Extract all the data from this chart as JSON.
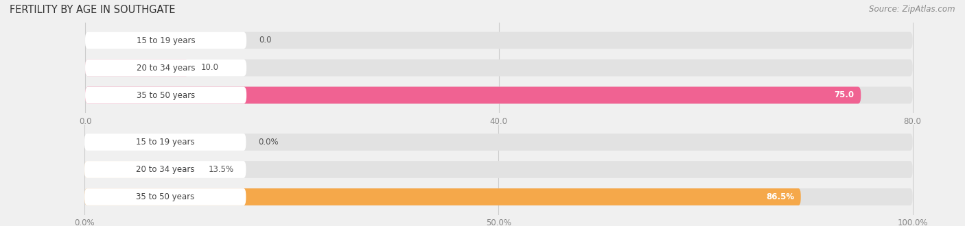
{
  "title": "FERTILITY BY AGE IN SOUTHGATE",
  "source": "Source: ZipAtlas.com",
  "background_color": "#f0f0f0",
  "chart1": {
    "categories": [
      "15 to 19 years",
      "20 to 34 years",
      "35 to 50 years"
    ],
    "values": [
      0.0,
      10.0,
      75.0
    ],
    "max_val": 80.0,
    "xticks": [
      0.0,
      40.0,
      80.0
    ],
    "bar_track_color": "#e2e2e2",
    "bar_colors": [
      "#f2adc0",
      "#f2adc0",
      "#f06292"
    ],
    "value_labels": [
      "0.0",
      "10.0",
      "75.0"
    ],
    "label_inside": [
      false,
      false,
      true
    ]
  },
  "chart2": {
    "categories": [
      "15 to 19 years",
      "20 to 34 years",
      "35 to 50 years"
    ],
    "values": [
      0.0,
      13.5,
      86.5
    ],
    "max_val": 100.0,
    "xticks": [
      0.0,
      50.0,
      100.0
    ],
    "xtick_labels": [
      "0.0%",
      "50.0%",
      "100.0%"
    ],
    "bar_track_color": "#e2e2e2",
    "bar_colors": [
      "#f5d3a8",
      "#f5d3a8",
      "#f5a84a"
    ],
    "value_labels": [
      "0.0%",
      "13.5%",
      "86.5%"
    ],
    "label_inside": [
      false,
      false,
      true
    ]
  },
  "label_box_color": "#ffffff",
  "label_text_color": "#444444",
  "grid_color": "#cccccc",
  "tick_color": "#888888",
  "title_color": "#333333",
  "source_color": "#888888"
}
